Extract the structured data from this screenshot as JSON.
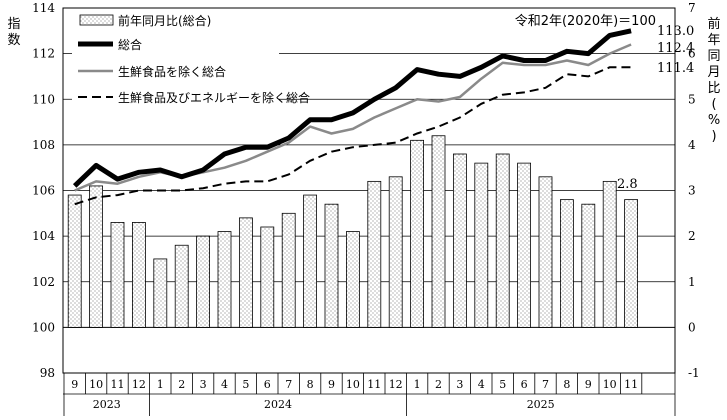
{
  "chart_data": {
    "type": "bar+line",
    "left_axis": {
      "title": "指数",
      "ylim": [
        98,
        114
      ],
      "ticks": [
        98,
        100,
        102,
        104,
        106,
        108,
        110,
        112,
        114
      ]
    },
    "right_axis": {
      "title": "前年同月比(%)",
      "ylim": [
        -1,
        7
      ],
      "ticks": [
        -1,
        0,
        1,
        2,
        3,
        4,
        5,
        6,
        7
      ]
    },
    "base_note": "令和2年(2020年)＝100",
    "months": [
      "9",
      "10",
      "11",
      "12",
      "1",
      "2",
      "3",
      "4",
      "5",
      "6",
      "7",
      "8",
      "9",
      "10",
      "11",
      "12",
      "1",
      "2",
      "3",
      "4",
      "5",
      "6",
      "7",
      "8",
      "9",
      "10",
      "11"
    ],
    "years": [
      {
        "label": "2023"
      },
      {
        "label": "2024"
      },
      {
        "label": "2025"
      }
    ],
    "bars": {
      "name": "前年同月比(総合)",
      "axis": "right",
      "values": [
        2.9,
        3.1,
        2.3,
        2.3,
        1.5,
        1.8,
        2.0,
        2.1,
        2.4,
        2.2,
        2.5,
        2.9,
        2.7,
        2.1,
        3.2,
        3.3,
        4.1,
        4.2,
        3.8,
        3.6,
        3.8,
        3.6,
        3.3,
        2.8,
        2.7,
        3.2,
        2.8
      ],
      "last_label": "2.8"
    },
    "lines": [
      {
        "name": "総合",
        "style": "thick-black",
        "values": [
          106.2,
          107.1,
          106.5,
          106.8,
          106.9,
          106.6,
          106.9,
          107.6,
          107.9,
          107.9,
          108.3,
          109.1,
          109.1,
          109.4,
          110.0,
          110.5,
          111.3,
          111.1,
          111.0,
          111.4,
          111.9,
          111.7,
          111.7,
          112.1,
          112.0,
          112.8,
          113.0
        ],
        "end_label": "113.0"
      },
      {
        "name": "生鮮食品を除く総合",
        "style": "gray",
        "values": [
          106.0,
          106.4,
          106.3,
          106.6,
          106.8,
          106.6,
          106.8,
          107.0,
          107.3,
          107.7,
          108.1,
          108.8,
          108.5,
          108.7,
          109.2,
          109.6,
          110.0,
          109.9,
          110.1,
          110.9,
          111.6,
          111.5,
          111.5,
          111.7,
          111.5,
          112.0,
          112.4
        ],
        "end_label": "112.4"
      },
      {
        "name": "生鮮食品及びエネルギーを除く総合",
        "style": "dashed-black",
        "values": [
          105.4,
          105.7,
          105.8,
          106.0,
          106.0,
          106.0,
          106.1,
          106.3,
          106.4,
          106.4,
          106.7,
          107.3,
          107.7,
          107.9,
          108.0,
          108.1,
          108.5,
          108.8,
          109.2,
          109.8,
          110.2,
          110.3,
          110.5,
          111.1,
          111.0,
          111.4,
          111.4
        ],
        "end_label": "111.4"
      }
    ],
    "legend_position": "top-left",
    "grid": "horizontal"
  }
}
